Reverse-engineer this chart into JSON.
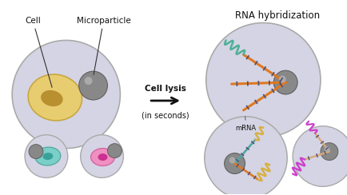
{
  "bg_color": "#ffffff",
  "droplet_fill": "#d4d4e4",
  "droplet_edge": "#aaaaaa",
  "cell_lysis_text": "Cell lysis",
  "in_seconds_text": "(in seconds)",
  "rna_hybrid_text": "RNA hybridization",
  "mrna_text": "mRNA",
  "cell_label": "Cell",
  "microparticle_label": "Microparticle",
  "yellow_cell_fill": "#e8cc70",
  "yellow_cell_edge": "#c8a840",
  "yellow_nucleus_fill": "#b89030",
  "teal_cell_fill": "#7acfc8",
  "teal_cell_edge": "#50a89e",
  "pink_cell_fill": "#f090c0",
  "pink_cell_edge": "#d060a0",
  "pink_nucleus_fill": "#cc3090",
  "microparticle_fill": "#888888",
  "microparticle_edge": "#606060",
  "orange_line": "#e07820",
  "teal_line": "#50a8a0",
  "purple_bar": "#505075",
  "teal_rna": "#50b098",
  "yellow_rna": "#d8b040",
  "magenta_rna": "#cc40cc",
  "peach_line": "#d8a878",
  "arrow_color": "#111111",
  "fig_w": 4.35,
  "fig_h": 2.44,
  "dpi": 100
}
